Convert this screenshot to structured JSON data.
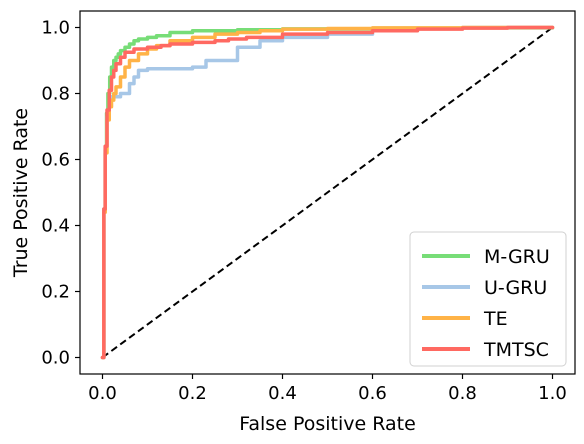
{
  "chart_data": {
    "type": "line",
    "title": "",
    "xlabel": "False Positive Rate",
    "ylabel": "True Positive Rate",
    "xlim": [
      -0.05,
      1.05
    ],
    "ylim": [
      -0.05,
      1.05
    ],
    "xticks": [
      "0.0",
      "0.2",
      "0.4",
      "0.6",
      "0.8",
      "1.0"
    ],
    "yticks": [
      "0.0",
      "0.2",
      "0.4",
      "0.6",
      "0.8",
      "1.0"
    ],
    "grid": false,
    "legend_position": "lower-right",
    "diagonal": {
      "x": [
        0,
        1
      ],
      "y": [
        0,
        1
      ],
      "color": "#000000",
      "style": "dashed"
    },
    "series": [
      {
        "name": "M-GRU",
        "color": "#77dd77",
        "x": [
          0,
          0.003,
          0.006,
          0.009,
          0.012,
          0.016,
          0.02,
          0.025,
          0.03,
          0.035,
          0.04,
          0.05,
          0.06,
          0.07,
          0.08,
          0.1,
          0.12,
          0.15,
          0.2,
          0.3,
          0.4,
          0.6,
          0.8,
          1.0
        ],
        "y": [
          0,
          0.45,
          0.63,
          0.74,
          0.8,
          0.85,
          0.88,
          0.9,
          0.91,
          0.92,
          0.93,
          0.94,
          0.95,
          0.96,
          0.965,
          0.97,
          0.975,
          0.985,
          0.99,
          0.993,
          0.996,
          0.998,
          0.999,
          1.0
        ]
      },
      {
        "name": "U-GRU",
        "color": "#a7c7e7",
        "x": [
          0,
          0.003,
          0.006,
          0.01,
          0.015,
          0.02,
          0.03,
          0.04,
          0.05,
          0.06,
          0.07,
          0.08,
          0.1,
          0.15,
          0.2,
          0.22,
          0.23,
          0.25,
          0.3,
          0.35,
          0.4,
          0.5,
          0.6,
          0.63,
          0.7,
          0.8,
          1.0
        ],
        "y": [
          0,
          0.45,
          0.64,
          0.73,
          0.78,
          0.79,
          0.79,
          0.8,
          0.8,
          0.83,
          0.85,
          0.87,
          0.875,
          0.875,
          0.88,
          0.88,
          0.9,
          0.9,
          0.94,
          0.96,
          0.97,
          0.98,
          0.99,
          0.995,
          0.998,
          1.0,
          1.0
        ]
      },
      {
        "name": "TE",
        "color": "#ffb347",
        "x": [
          0,
          0.003,
          0.006,
          0.01,
          0.015,
          0.02,
          0.025,
          0.03,
          0.04,
          0.05,
          0.06,
          0.08,
          0.1,
          0.12,
          0.15,
          0.2,
          0.25,
          0.3,
          0.35,
          0.4,
          0.5,
          0.6,
          0.8,
          1.0
        ],
        "y": [
          0,
          0.44,
          0.62,
          0.72,
          0.76,
          0.78,
          0.8,
          0.82,
          0.85,
          0.88,
          0.9,
          0.92,
          0.935,
          0.945,
          0.96,
          0.97,
          0.98,
          0.985,
          0.99,
          0.995,
          0.997,
          0.999,
          1.0,
          1.0
        ]
      },
      {
        "name": "TMTSC",
        "color": "#ff6961",
        "x": [
          0,
          0.003,
          0.006,
          0.01,
          0.015,
          0.02,
          0.025,
          0.03,
          0.04,
          0.05,
          0.07,
          0.1,
          0.13,
          0.15,
          0.2,
          0.25,
          0.28,
          0.32,
          0.4,
          0.5,
          0.6,
          0.7,
          0.8,
          0.9,
          1.0
        ],
        "y": [
          0,
          0.45,
          0.64,
          0.75,
          0.81,
          0.85,
          0.87,
          0.89,
          0.91,
          0.925,
          0.935,
          0.94,
          0.945,
          0.95,
          0.955,
          0.96,
          0.965,
          0.97,
          0.98,
          0.985,
          0.99,
          0.995,
          0.998,
          1.0,
          1.0
        ]
      }
    ]
  }
}
